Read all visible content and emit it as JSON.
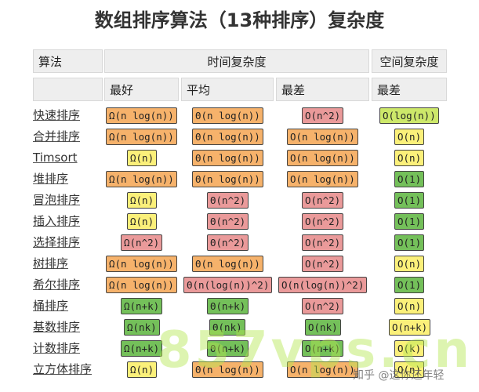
{
  "title": "数组排序算法（13种排序）复杂度",
  "header": {
    "algorithm": "算法",
    "time_complexity": "时间复杂度",
    "space_complexity": "空间复杂度",
    "best": "最好",
    "average": "平均",
    "worst": "最差",
    "space_worst": "最差"
  },
  "colors": {
    "orange": "#f6b26b",
    "red": "#ea9a9a",
    "yellow": "#fbf07a",
    "green": "#74c05a",
    "lime": "#cde86a"
  },
  "rows": [
    {
      "name": "快速排序",
      "best": {
        "t": "Ω(n log(n))",
        "c": "orange"
      },
      "avg": {
        "t": "Θ(n log(n))",
        "c": "orange"
      },
      "worst": {
        "t": "O(n^2)",
        "c": "red"
      },
      "space": {
        "t": "O(log(n))",
        "c": "lime"
      }
    },
    {
      "name": "合并排序",
      "best": {
        "t": "Ω(n log(n))",
        "c": "orange"
      },
      "avg": {
        "t": "Θ(n log(n))",
        "c": "orange"
      },
      "worst": {
        "t": "O(n log(n))",
        "c": "orange"
      },
      "space": {
        "t": "O(n)",
        "c": "yellow"
      }
    },
    {
      "name": "Timsort",
      "best": {
        "t": "Ω(n)",
        "c": "yellow"
      },
      "avg": {
        "t": "Θ(n log(n))",
        "c": "orange"
      },
      "worst": {
        "t": "O(n log(n))",
        "c": "orange"
      },
      "space": {
        "t": "O(n)",
        "c": "yellow"
      }
    },
    {
      "name": "堆排序",
      "best": {
        "t": "Ω(n log(n))",
        "c": "orange"
      },
      "avg": {
        "t": "Θ(n log(n))",
        "c": "orange"
      },
      "worst": {
        "t": "O(n log(n))",
        "c": "orange"
      },
      "space": {
        "t": "O(1)",
        "c": "green"
      }
    },
    {
      "name": "冒泡排序",
      "best": {
        "t": "Ω(n)",
        "c": "yellow"
      },
      "avg": {
        "t": "Θ(n^2)",
        "c": "red"
      },
      "worst": {
        "t": "O(n^2)",
        "c": "red"
      },
      "space": {
        "t": "O(1)",
        "c": "green"
      }
    },
    {
      "name": "插入排序",
      "best": {
        "t": "Ω(n)",
        "c": "yellow"
      },
      "avg": {
        "t": "Θ(n^2)",
        "c": "red"
      },
      "worst": {
        "t": "O(n^2)",
        "c": "red"
      },
      "space": {
        "t": "O(1)",
        "c": "green"
      }
    },
    {
      "name": "选择排序",
      "best": {
        "t": "Ω(n^2)",
        "c": "red"
      },
      "avg": {
        "t": "Θ(n^2)",
        "c": "red"
      },
      "worst": {
        "t": "O(n^2)",
        "c": "red"
      },
      "space": {
        "t": "O(1)",
        "c": "green"
      }
    },
    {
      "name": "树排序",
      "best": {
        "t": "Ω(n log(n))",
        "c": "orange"
      },
      "avg": {
        "t": "Θ(n log(n))",
        "c": "orange"
      },
      "worst": {
        "t": "O(n^2)",
        "c": "red"
      },
      "space": {
        "t": "O(n)",
        "c": "yellow"
      }
    },
    {
      "name": "希尔排序",
      "best": {
        "t": "Ω(n log(n))",
        "c": "orange"
      },
      "avg": {
        "t": "Θ(n(log(n))^2)",
        "c": "red"
      },
      "worst": {
        "t": "O(n(log(n))^2)",
        "c": "red"
      },
      "space": {
        "t": "O(1)",
        "c": "green"
      }
    },
    {
      "name": "桶排序",
      "best": {
        "t": "Ω(n+k)",
        "c": "green"
      },
      "avg": {
        "t": "Θ(n+k)",
        "c": "green"
      },
      "worst": {
        "t": "O(n^2)",
        "c": "red"
      },
      "space": {
        "t": "O(n)",
        "c": "yellow"
      }
    },
    {
      "name": "基数排序",
      "best": {
        "t": "Ω(nk)",
        "c": "green"
      },
      "avg": {
        "t": "Θ(nk)",
        "c": "green"
      },
      "worst": {
        "t": "O(nk)",
        "c": "green"
      },
      "space": {
        "t": "O(n+k)",
        "c": "yellow"
      }
    },
    {
      "name": "计数排序",
      "best": {
        "t": "Ω(n+k)",
        "c": "green"
      },
      "avg": {
        "t": "Θ(n+k)",
        "c": "green"
      },
      "worst": {
        "t": "O(n+k)",
        "c": "green"
      },
      "space": {
        "t": "O(k)",
        "c": "yellow"
      }
    },
    {
      "name": "立方体排序",
      "best": {
        "t": "Ω(n)",
        "c": "yellow"
      },
      "avg": {
        "t": "Θ(n log(n))",
        "c": "orange"
      },
      "worst": {
        "t": "O(n log(n))",
        "c": "orange"
      },
      "space": {
        "t": "O(n)",
        "c": "yellow"
      }
    }
  ],
  "watermark": "857vps.cn",
  "credit": "知乎 @这你还年轻"
}
